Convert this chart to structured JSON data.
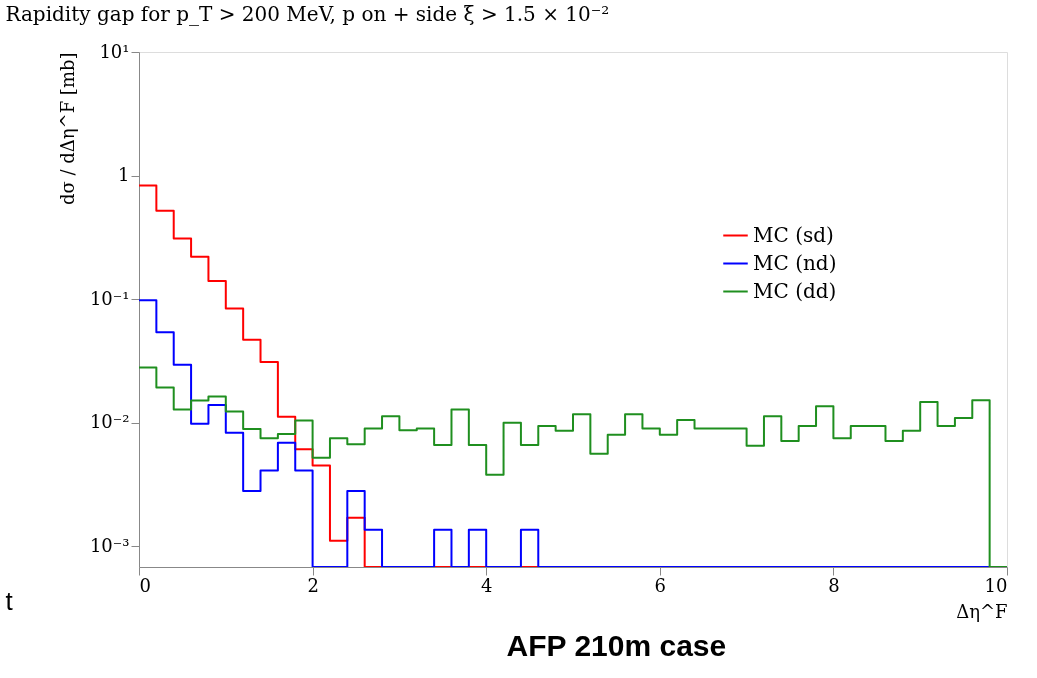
{
  "chart_data": {
    "type": "histogram",
    "title": "Rapidity gap for p_T > 200 MeV, p on + side ξ > 1.5 × 10⁻²",
    "xlabel": "Δη^F",
    "ylabel": "dσ / dΔη^F [mb]",
    "bins": [
      0,
      0.2,
      0.4,
      0.6,
      0.8,
      1.0,
      1.2,
      1.4,
      1.6,
      1.8,
      2.0,
      2.2,
      2.4,
      2.6,
      2.8,
      3.0,
      3.2,
      3.4,
      3.6,
      3.8,
      4.0,
      4.2,
      4.4,
      4.6,
      4.8,
      5.0,
      5.2,
      5.4,
      5.6,
      5.8,
      6.0,
      6.2,
      6.4,
      6.6,
      6.8,
      7.0,
      7.2,
      7.4,
      7.6,
      7.8,
      8.0,
      8.2,
      8.4,
      8.6,
      8.8,
      9.0,
      9.2,
      9.4,
      9.6,
      9.8,
      10.0
    ],
    "series": [
      {
        "name": "MC (sd)",
        "color": "#ff0000",
        "values": [
          0.83,
          0.52,
          0.31,
          0.22,
          0.14,
          0.084,
          0.047,
          0.031,
          0.0112,
          0.0061,
          0.0045,
          0.00111,
          0.0017,
          null,
          null,
          null,
          null,
          null,
          null,
          null,
          null,
          null,
          null,
          null,
          null,
          null,
          null,
          null,
          null,
          null,
          null,
          null,
          null,
          null,
          null,
          null,
          null,
          null,
          null,
          null,
          null,
          null,
          null,
          null,
          null,
          null,
          null,
          null,
          null,
          null
        ]
      },
      {
        "name": "MC (nd)",
        "color": "#0000ff",
        "values": [
          0.098,
          0.054,
          0.0295,
          0.0098,
          0.0139,
          0.0083,
          0.0028,
          0.0041,
          0.0069,
          0.0041,
          null,
          null,
          0.0028,
          0.00136,
          null,
          null,
          null,
          0.00136,
          null,
          0.00136,
          null,
          null,
          0.00136,
          null,
          null,
          null,
          null,
          null,
          null,
          null,
          null,
          null,
          null,
          null,
          null,
          null,
          null,
          null,
          null,
          null,
          null,
          null,
          null,
          null,
          null,
          null,
          null,
          null,
          null,
          null
        ]
      },
      {
        "name": "MC (dd)",
        "color": "#1f8f1f",
        "values": [
          0.028,
          0.0193,
          0.0128,
          0.0151,
          0.0163,
          0.0123,
          0.0089,
          0.0075,
          0.0081,
          0.0104,
          0.0052,
          0.0075,
          0.0067,
          0.009,
          0.0113,
          0.0087,
          0.009,
          0.0066,
          0.0128,
          0.0066,
          0.0038,
          0.01,
          0.0066,
          0.0094,
          0.0086,
          0.0117,
          0.0056,
          0.008,
          0.0117,
          0.009,
          0.008,
          0.0105,
          0.009,
          0.009,
          0.009,
          0.0065,
          0.0113,
          0.0071,
          0.0094,
          0.0136,
          0.0075,
          0.0094,
          0.0094,
          0.0071,
          0.0086,
          0.0147,
          0.0094,
          0.0109,
          0.0152,
          null
        ]
      }
    ],
    "log": "y",
    "xlim": [
      0,
      10
    ],
    "xticks": [
      0,
      2,
      4,
      6,
      8,
      10
    ],
    "ylim": [
      0.00068,
      10
    ],
    "yticks": [
      {
        "value": 10,
        "label": "10¹"
      },
      1,
      {
        "value": 0.1,
        "label": "10⁻¹"
      },
      {
        "value": 0.01,
        "label": "10⁻²"
      },
      {
        "value": 0.001,
        "label": "10⁻³"
      }
    ],
    "grid": false,
    "legend": "top right",
    "line_style": "solid",
    "annotations": [
      "AFP 210m case",
      "t"
    ]
  }
}
